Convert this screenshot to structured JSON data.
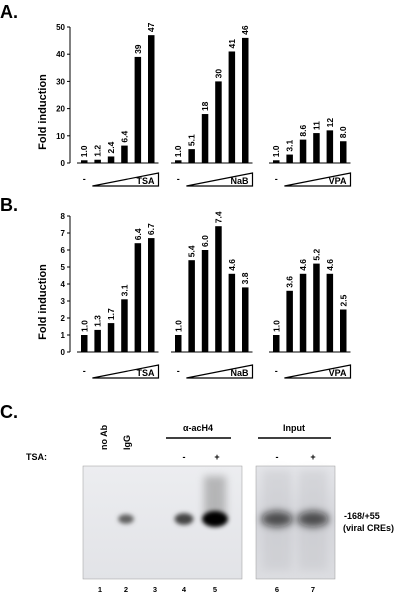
{
  "figure": {
    "panels": [
      {
        "letter": "A."
      },
      {
        "letter": "B."
      },
      {
        "letter": "C."
      }
    ]
  },
  "chart_data": [
    {
      "type": "bar",
      "panel": "A.",
      "ylabel": "Fold induction",
      "ylim": [
        0,
        50
      ],
      "yticks": [
        0,
        10,
        20,
        30,
        40,
        50
      ],
      "groups": [
        {
          "name": "TSA",
          "values": [
            1.0,
            1.2,
            2.4,
            6.4,
            39,
            47
          ],
          "labels": [
            "1.0",
            "1.2",
            "2.4",
            "6.4",
            "39",
            "47"
          ]
        },
        {
          "name": "NaB",
          "values": [
            1.0,
            5.1,
            18,
            30,
            41,
            46
          ],
          "labels": [
            "1.0",
            "5.1",
            "18",
            "30",
            "41",
            "46"
          ]
        },
        {
          "name": "VPA",
          "values": [
            1.0,
            3.1,
            8.6,
            11,
            12,
            8.0
          ],
          "labels": [
            "1.0",
            "3.1",
            "8.6",
            "11",
            "12",
            "8.0"
          ]
        }
      ],
      "control_label": "-"
    },
    {
      "type": "bar",
      "panel": "B.",
      "ylabel": "Fold induction",
      "ylim": [
        0,
        8
      ],
      "yticks": [
        0,
        1,
        2,
        3,
        4,
        5,
        6,
        7,
        8
      ],
      "groups": [
        {
          "name": "TSA",
          "values": [
            1.0,
            1.3,
            1.7,
            3.1,
            6.4,
            6.7
          ],
          "labels": [
            "1.0",
            "1.3",
            "1.7",
            "3.1",
            "6.4",
            "6.7"
          ]
        },
        {
          "name": "NaB",
          "values": [
            1.0,
            5.4,
            6.0,
            7.4,
            4.6,
            3.8
          ],
          "labels": [
            "1.0",
            "5.4",
            "6.0",
            "7.4",
            "4.6",
            "3.8"
          ]
        },
        {
          "name": "VPA",
          "values": [
            1.0,
            3.6,
            4.6,
            5.2,
            4.6,
            2.5
          ],
          "labels": [
            "1.0",
            "3.6",
            "4.6",
            "5.2",
            "4.6",
            "2.5"
          ]
        }
      ],
      "control_label": "-"
    }
  ],
  "gel": {
    "lane_headers": [
      "no Ab",
      "IgG"
    ],
    "antibody_group": "α-acH4",
    "input_group": "Input",
    "tsa_label": "TSA:",
    "tsa_states": [
      "-",
      "+",
      "-",
      "+"
    ],
    "band_label_line1": "-168/+55",
    "band_label_line2": "(viral CREs)",
    "lane_numbers": [
      "1",
      "2",
      "3",
      "4",
      "5",
      "6",
      "7"
    ],
    "band_intensity": [
      0,
      0.35,
      0,
      0.55,
      1.0,
      1.0,
      1.0
    ]
  }
}
